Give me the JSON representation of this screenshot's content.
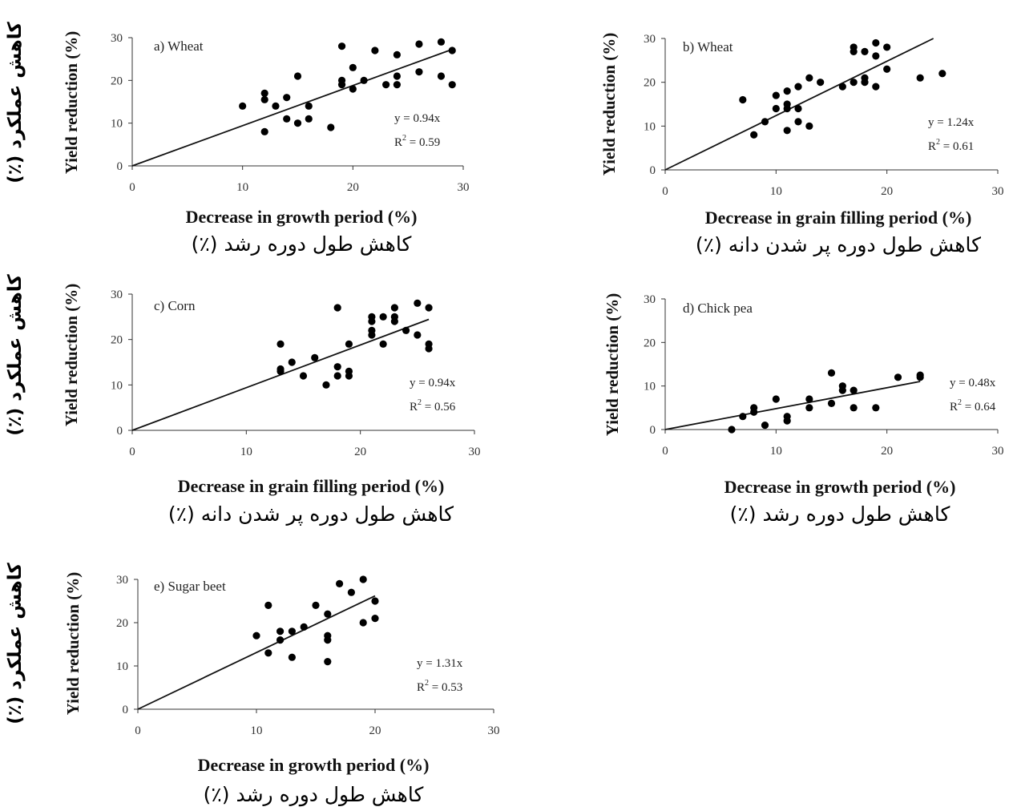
{
  "chart_data": [
    {
      "type": "scatter",
      "panel_label": "a) Wheat",
      "xlabel": "Decrease in growth period (%)",
      "xlabel_fa": "کاهش طول دوره رشد (٪)",
      "ylabel": "Yield reduction (%)",
      "ylabel_fa": "کاهش عملکرد (٪)",
      "xlim": [
        0,
        30
      ],
      "ylim": [
        0,
        30
      ],
      "xticks": [
        "0",
        "10",
        "20",
        "30"
      ],
      "yticks": [
        "0",
        "10",
        "20",
        "30"
      ],
      "equation": "y = 0.94x",
      "r2_prefix": "R",
      "r2_sup": "2",
      "r2_value": " = 0.59",
      "slope": 0.94,
      "points": [
        [
          10,
          14
        ],
        [
          12,
          17
        ],
        [
          12,
          15.5
        ],
        [
          12,
          8
        ],
        [
          13,
          14
        ],
        [
          14,
          16
        ],
        [
          14,
          11
        ],
        [
          15,
          21
        ],
        [
          15,
          10
        ],
        [
          16,
          14
        ],
        [
          16,
          11
        ],
        [
          18,
          9
        ],
        [
          19,
          28
        ],
        [
          19,
          20
        ],
        [
          19,
          19
        ],
        [
          20,
          23
        ],
        [
          20,
          18
        ],
        [
          21,
          20
        ],
        [
          22,
          27
        ],
        [
          23,
          19
        ],
        [
          24,
          26
        ],
        [
          24,
          21
        ],
        [
          24,
          19
        ],
        [
          26,
          28.5
        ],
        [
          26,
          22
        ],
        [
          28,
          29
        ],
        [
          28,
          21
        ],
        [
          29,
          27
        ],
        [
          29,
          19
        ]
      ]
    },
    {
      "type": "scatter",
      "panel_label": "b) Wheat",
      "xlabel": "Decrease in grain filling period (%)",
      "xlabel_fa": "کاهش طول دوره پر شدن دانه (٪)",
      "ylabel": "Yield reduction (%)",
      "ylabel_fa": "",
      "xlim": [
        0,
        30
      ],
      "ylim": [
        0,
        30
      ],
      "xticks": [
        "0",
        "10",
        "20",
        "30"
      ],
      "yticks": [
        "0",
        "10",
        "20",
        "30"
      ],
      "equation": "y = 1.24x",
      "r2_prefix": "R",
      "r2_sup": "2",
      "r2_value": " = 0.61",
      "slope": 1.24,
      "points": [
        [
          7,
          16
        ],
        [
          8,
          8
        ],
        [
          9,
          11
        ],
        [
          10,
          17
        ],
        [
          10,
          14
        ],
        [
          11,
          18
        ],
        [
          11,
          15
        ],
        [
          11,
          14
        ],
        [
          11,
          9
        ],
        [
          12,
          19
        ],
        [
          12,
          14
        ],
        [
          12,
          11
        ],
        [
          13,
          21
        ],
        [
          13,
          10
        ],
        [
          14,
          20
        ],
        [
          16,
          19
        ],
        [
          17,
          28
        ],
        [
          17,
          27
        ],
        [
          17,
          20
        ],
        [
          18,
          27
        ],
        [
          18,
          21
        ],
        [
          18,
          20
        ],
        [
          19,
          29
        ],
        [
          19,
          26
        ],
        [
          19,
          19
        ],
        [
          20,
          28
        ],
        [
          20,
          23
        ],
        [
          23,
          21
        ],
        [
          25,
          22
        ]
      ]
    },
    {
      "type": "scatter",
      "panel_label": "c) Corn",
      "xlabel": "Decrease in grain filling period (%)",
      "xlabel_fa": "کاهش طول دوره پر شدن دانه (٪)",
      "ylabel": "Yield reduction (%)",
      "ylabel_fa": "کاهش عملکرد (٪)",
      "xlim": [
        0,
        30
      ],
      "ylim": [
        0,
        30
      ],
      "xticks": [
        "0",
        "10",
        "20",
        "30"
      ],
      "yticks": [
        "0",
        "10",
        "20",
        "30"
      ],
      "equation": "y = 0.94x",
      "r2_prefix": "R",
      "r2_sup": "2",
      "r2_value": " = 0.56",
      "slope": 0.94,
      "points": [
        [
          13,
          19
        ],
        [
          13,
          13.5
        ],
        [
          13,
          13
        ],
        [
          14,
          15
        ],
        [
          15,
          12
        ],
        [
          16,
          16
        ],
        [
          17,
          10
        ],
        [
          18,
          27
        ],
        [
          18,
          14
        ],
        [
          18,
          12
        ],
        [
          19,
          19
        ],
        [
          19,
          13
        ],
        [
          19,
          12
        ],
        [
          21,
          25
        ],
        [
          21,
          24
        ],
        [
          21,
          22
        ],
        [
          21,
          21
        ],
        [
          22,
          19
        ],
        [
          22,
          25
        ],
        [
          23,
          27
        ],
        [
          23,
          25
        ],
        [
          23,
          24
        ],
        [
          24,
          22
        ],
        [
          25,
          28
        ],
        [
          25,
          21
        ],
        [
          26,
          27
        ],
        [
          26,
          19
        ],
        [
          26,
          18
        ]
      ]
    },
    {
      "type": "scatter",
      "panel_label": "d) Chick pea",
      "xlabel": "Decrease in growth period (%)",
      "xlabel_fa": "کاهش طول دوره رشد (٪)",
      "ylabel": "Yield reduction (%)",
      "ylabel_fa": "",
      "xlim": [
        0,
        30
      ],
      "ylim": [
        0,
        30
      ],
      "xticks": [
        "0",
        "10",
        "20",
        "30"
      ],
      "yticks": [
        "0",
        "10",
        "20",
        "30"
      ],
      "equation": "y = 0.48x",
      "r2_prefix": "R",
      "r2_sup": "2",
      "r2_value": " = 0.64",
      "slope": 0.48,
      "points": [
        [
          6,
          0
        ],
        [
          7,
          3
        ],
        [
          8,
          5
        ],
        [
          8,
          4
        ],
        [
          9,
          1
        ],
        [
          10,
          7
        ],
        [
          11,
          3
        ],
        [
          11,
          2
        ],
        [
          13,
          7
        ],
        [
          13,
          5
        ],
        [
          15,
          13
        ],
        [
          15,
          6
        ],
        [
          16,
          10
        ],
        [
          16,
          9
        ],
        [
          17,
          9
        ],
        [
          17,
          5
        ],
        [
          19,
          5
        ],
        [
          21,
          12
        ],
        [
          23,
          12.5
        ],
        [
          23,
          12
        ]
      ]
    },
    {
      "type": "scatter",
      "panel_label": "e) Sugar beet",
      "xlabel": "Decrease in growth period (%)",
      "xlabel_fa": "کاهش طول دوره رشد (٪)",
      "ylabel": "Yield reduction (%)",
      "ylabel_fa": "کاهش عملکرد (٪)",
      "xlim": [
        0,
        30
      ],
      "ylim": [
        0,
        30
      ],
      "xticks": [
        "0",
        "10",
        "20",
        "30"
      ],
      "yticks": [
        "0",
        "10",
        "20",
        "30"
      ],
      "equation": "y = 1.31x",
      "r2_prefix": "R",
      "r2_sup": "2",
      "r2_value": " = 0.53",
      "slope": 1.31,
      "points": [
        [
          10,
          17
        ],
        [
          11,
          24
        ],
        [
          11,
          13
        ],
        [
          12,
          18
        ],
        [
          12,
          16
        ],
        [
          13,
          18
        ],
        [
          13,
          12
        ],
        [
          14,
          19
        ],
        [
          15,
          24
        ],
        [
          16,
          22
        ],
        [
          16,
          17
        ],
        [
          16,
          16
        ],
        [
          16,
          11
        ],
        [
          17,
          29
        ],
        [
          18,
          27
        ],
        [
          19,
          30
        ],
        [
          19,
          20
        ],
        [
          20,
          25
        ],
        [
          20,
          21
        ]
      ]
    }
  ]
}
